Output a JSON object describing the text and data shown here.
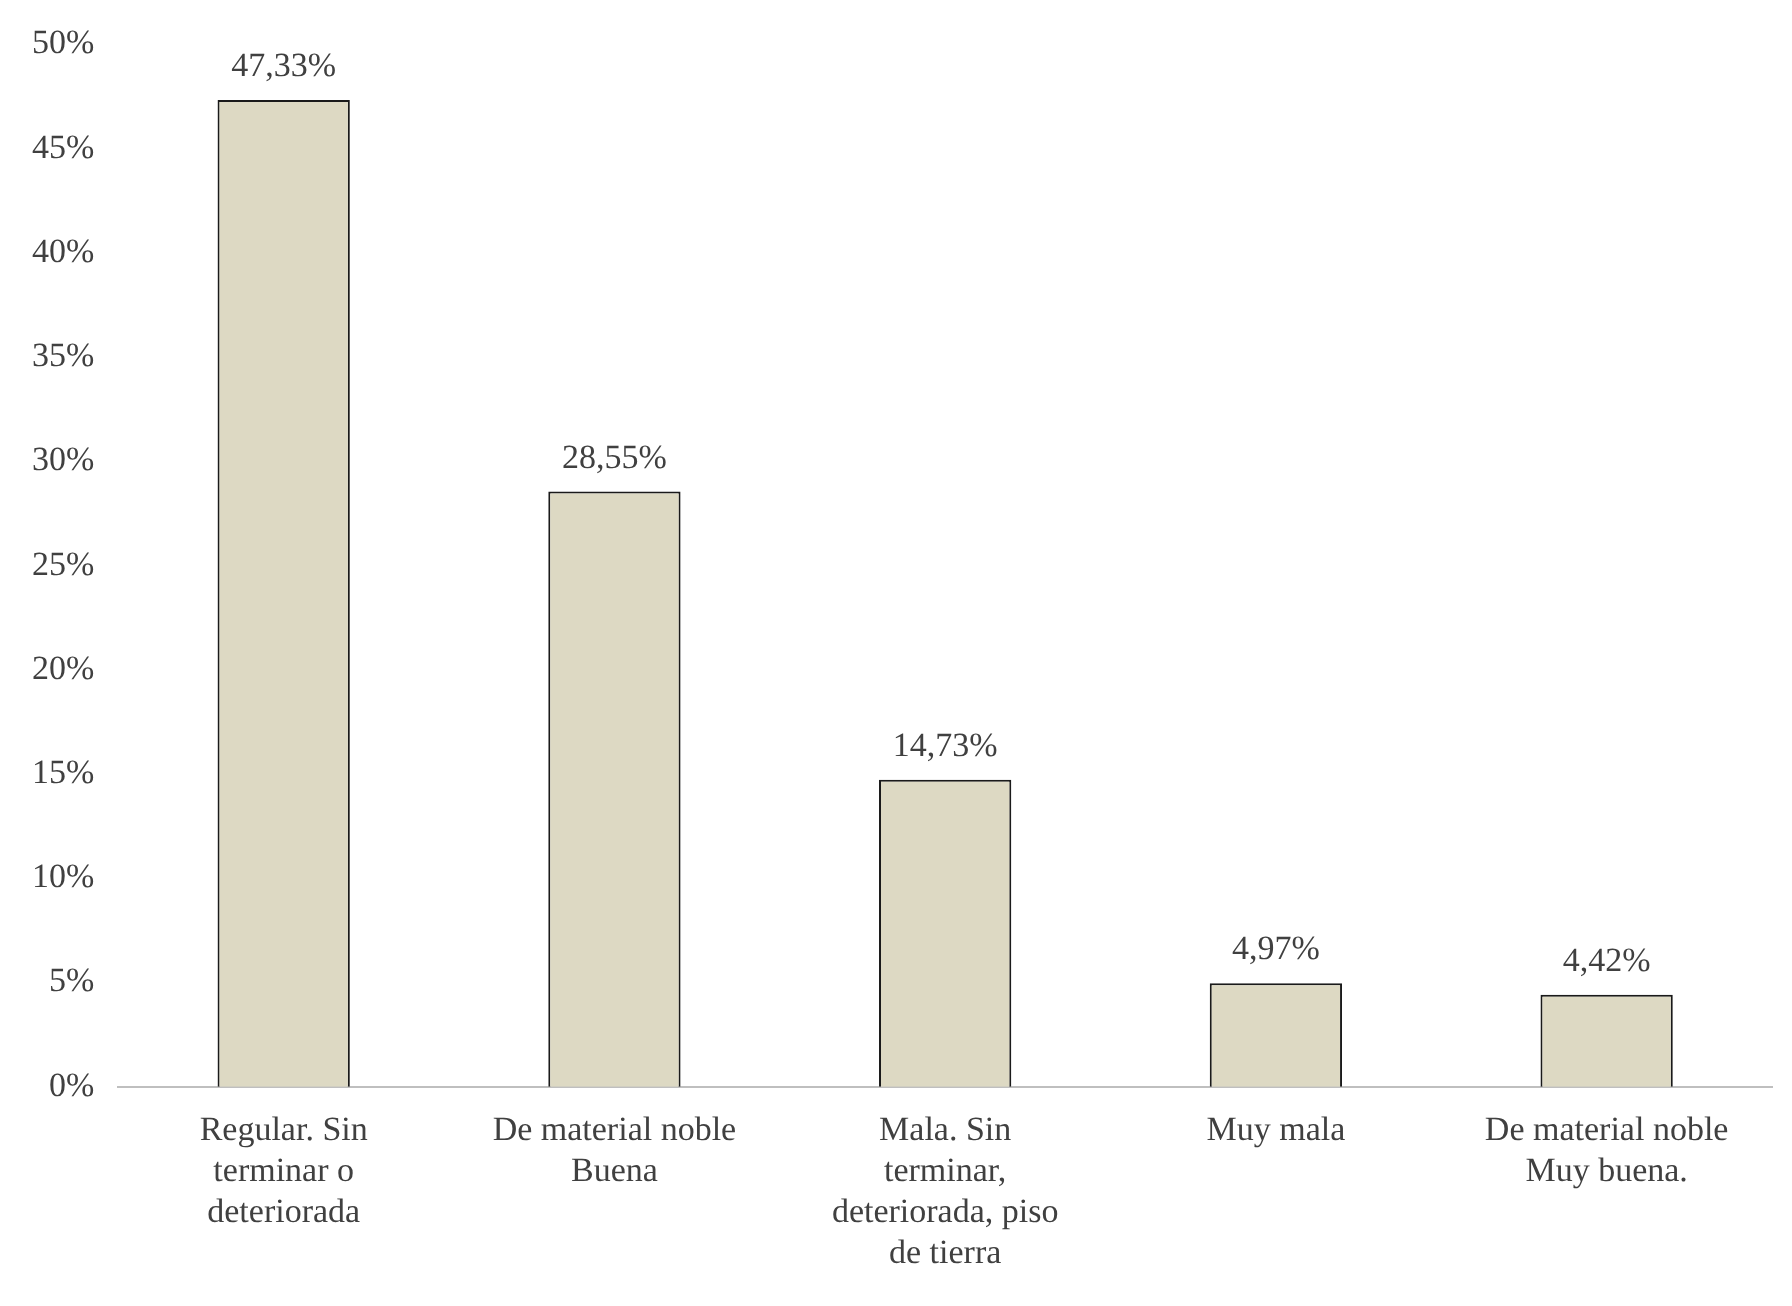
{
  "chart_data": {
    "type": "bar",
    "categories": [
      "Regular. Sin terminar o deteriorada",
      "De material noble Buena",
      "Mala. Sin terminar, deteriorada, piso de tierra",
      "Muy mala",
      "De material noble Muy buena."
    ],
    "values": [
      47.33,
      28.55,
      14.73,
      4.97,
      4.42
    ],
    "value_labels": [
      "47,33%",
      "28,55%",
      "14,73%",
      "4,97%",
      "4,42%"
    ],
    "color": "#ddd9c3",
    "ylim": [
      0,
      50
    ],
    "yticks": [
      {
        "value": 0,
        "label": "0%"
      },
      {
        "value": 5,
        "label": "5%"
      },
      {
        "value": 10,
        "label": "10%"
      },
      {
        "value": 15,
        "label": "15%"
      },
      {
        "value": 20,
        "label": "20%"
      },
      {
        "value": 25,
        "label": "25%"
      },
      {
        "value": 30,
        "label": "30%"
      },
      {
        "value": 35,
        "label": "35%"
      },
      {
        "value": 40,
        "label": "40%"
      },
      {
        "value": 45,
        "label": "45%"
      },
      {
        "value": 50,
        "label": "50%"
      }
    ],
    "grid": false,
    "legend": false
  }
}
